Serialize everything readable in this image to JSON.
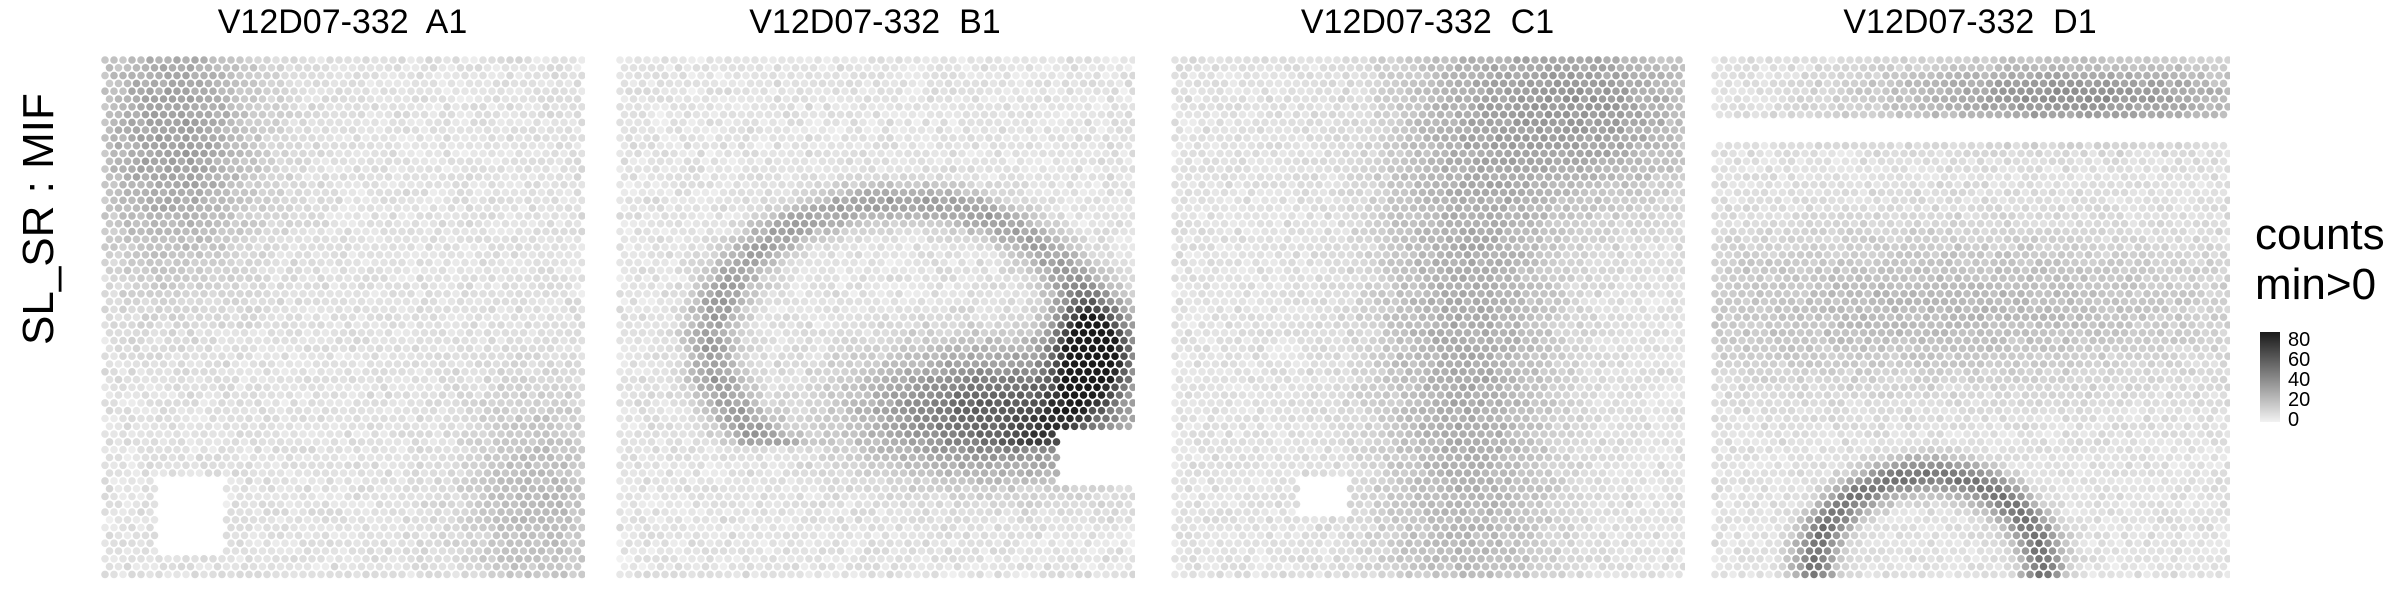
{
  "row_label": "SL_SR : MIF",
  "legend": {
    "title_line1": "counts",
    "title_line2": "min>0",
    "ticks": [
      "80",
      "60",
      "40",
      "20",
      "0"
    ]
  },
  "panels": [
    {
      "title": "V12D07-332  A1"
    },
    {
      "title": "V12D07-332  B1"
    },
    {
      "title": "V12D07-332  C1"
    },
    {
      "title": "V12D07-332  D1"
    }
  ],
  "chart_data": [
    {
      "type": "heatmap",
      "title": "V12D07-332  A1",
      "value_label": "counts",
      "value_range": [
        0,
        80
      ],
      "colormap": {
        "low": "#f2f2f2",
        "high": "#1a1a1a"
      },
      "regions": [
        {
          "area": "top-left",
          "counts_approx": 25
        },
        {
          "area": "bottom-right",
          "counts_approx": 15
        },
        {
          "area": "elsewhere",
          "counts_approx": 5
        }
      ]
    },
    {
      "type": "heatmap",
      "title": "V12D07-332  B1",
      "value_label": "counts",
      "value_range": [
        0,
        80
      ],
      "colormap": {
        "low": "#f2f2f2",
        "high": "#1a1a1a"
      },
      "regions": [
        {
          "area": "arc band",
          "counts_approx": 25
        },
        {
          "area": "lower-right band",
          "counts_approx": 50
        },
        {
          "area": "hotspot right",
          "counts_approx": 80
        },
        {
          "area": "elsewhere",
          "counts_approx": 5
        }
      ]
    },
    {
      "type": "heatmap",
      "title": "V12D07-332  C1",
      "value_label": "counts",
      "value_range": [
        0,
        80
      ],
      "colormap": {
        "low": "#f2f2f2",
        "high": "#1a1a1a"
      },
      "regions": [
        {
          "area": "central vertical band",
          "counts_approx": 20
        },
        {
          "area": "top-right",
          "counts_approx": 25
        },
        {
          "area": "elsewhere",
          "counts_approx": 5
        }
      ]
    },
    {
      "type": "heatmap",
      "title": "V12D07-332  D1",
      "value_label": "counts",
      "value_range": [
        0,
        80
      ],
      "colormap": {
        "low": "#f2f2f2",
        "high": "#1a1a1a"
      },
      "regions": [
        {
          "area": "top band",
          "counts_approx": 30
        },
        {
          "area": "middle band",
          "counts_approx": 15
        },
        {
          "area": "bottom arc",
          "counts_approx": 40
        },
        {
          "area": "elsewhere",
          "counts_approx": 5
        }
      ]
    }
  ]
}
